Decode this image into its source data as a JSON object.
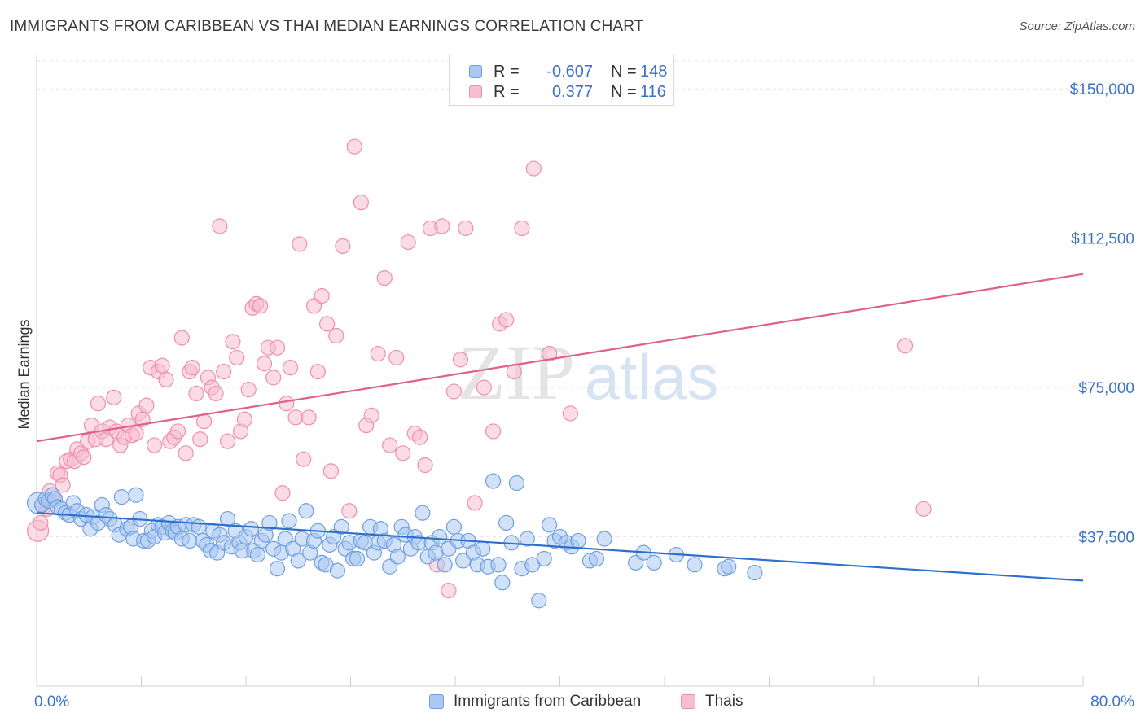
{
  "title": "IMMIGRANTS FROM CARIBBEAN VS THAI MEDIAN EARNINGS CORRELATION CHART",
  "source": "Source: ZipAtlas.com",
  "watermark": {
    "part1": "ZIP",
    "part2": "atlas"
  },
  "legend": {
    "rows": [
      {
        "r_label": "R =",
        "r_value": "-0.607",
        "n_label": "N =",
        "n_value": "148",
        "color": "#6f9fe0"
      },
      {
        "r_label": "R =",
        "r_value": "0.377",
        "n_label": "N =",
        "n_value": "116",
        "color": "#ef8fab"
      }
    ]
  },
  "colors": {
    "caribbean_fill": "#a9c8f2",
    "caribbean_stroke": "#6f9fe0",
    "caribbean_line": "#2e6fce",
    "thai_fill": "#f7bdd0",
    "thai_stroke": "#ef8fab",
    "thai_line": "#e0608a",
    "axis_label": "#3b72c7",
    "grid": "#e6e6e6"
  },
  "chart_data": {
    "type": "scatter",
    "title": "IMMIGRANTS FROM CARIBBEAN VS THAI MEDIAN EARNINGS CORRELATION CHART",
    "xlabel": "",
    "ylabel": "Median Earnings",
    "xlim": [
      0,
      80
    ],
    "ylim": [
      0,
      157000
    ],
    "x_tick_labels": [
      "0.0%",
      "80.0%"
    ],
    "y_ticks": [
      37500,
      75000,
      112500,
      150000
    ],
    "y_tick_labels": [
      "$37,500",
      "$75,000",
      "$112,500",
      "$150,000"
    ],
    "grid": true,
    "legend_placement": "top-center",
    "series": [
      {
        "name": "Immigrants from Caribbean",
        "trend": {
          "x": [
            0,
            80
          ],
          "y": [
            43500,
            26500
          ]
        },
        "points": [
          [
            0.1,
            46000
          ],
          [
            0.4,
            45500
          ],
          [
            0.7,
            47000
          ],
          [
            0.9,
            46500
          ],
          [
            1.2,
            48000
          ],
          [
            1.4,
            47000
          ],
          [
            1.6,
            45000
          ],
          [
            1.9,
            44500
          ],
          [
            2.2,
            43500
          ],
          [
            2.5,
            43000
          ],
          [
            2.8,
            46000
          ],
          [
            3.1,
            44000
          ],
          [
            3.4,
            42000
          ],
          [
            3.8,
            43000
          ],
          [
            4.1,
            39500
          ],
          [
            4.3,
            42500
          ],
          [
            4.7,
            41000
          ],
          [
            5.0,
            45500
          ],
          [
            5.3,
            43000
          ],
          [
            5.6,
            42000
          ],
          [
            6.0,
            40500
          ],
          [
            6.3,
            38000
          ],
          [
            6.5,
            47500
          ],
          [
            6.9,
            39500
          ],
          [
            7.2,
            40000
          ],
          [
            7.4,
            37000
          ],
          [
            7.6,
            48000
          ],
          [
            7.9,
            42000
          ],
          [
            8.2,
            36500
          ],
          [
            8.5,
            36500
          ],
          [
            8.8,
            39000
          ],
          [
            9.0,
            37500
          ],
          [
            9.3,
            40500
          ],
          [
            9.6,
            40000
          ],
          [
            9.8,
            38500
          ],
          [
            10.1,
            41000
          ],
          [
            10.4,
            39000
          ],
          [
            10.6,
            38500
          ],
          [
            10.8,
            40000
          ],
          [
            11.1,
            37000
          ],
          [
            11.4,
            40500
          ],
          [
            11.7,
            36500
          ],
          [
            12.0,
            40500
          ],
          [
            12.4,
            40000
          ],
          [
            12.7,
            36500
          ],
          [
            13.0,
            35500
          ],
          [
            13.3,
            34000
          ],
          [
            13.5,
            39000
          ],
          [
            13.8,
            33500
          ],
          [
            14.0,
            38000
          ],
          [
            14.3,
            36000
          ],
          [
            14.6,
            42000
          ],
          [
            14.9,
            35000
          ],
          [
            15.2,
            39000
          ],
          [
            15.5,
            36000
          ],
          [
            15.7,
            34000
          ],
          [
            16.0,
            37500
          ],
          [
            16.4,
            39500
          ],
          [
            16.6,
            34000
          ],
          [
            16.9,
            33000
          ],
          [
            17.2,
            36500
          ],
          [
            17.5,
            38000
          ],
          [
            17.8,
            41000
          ],
          [
            18.1,
            34500
          ],
          [
            18.4,
            29500
          ],
          [
            18.7,
            33500
          ],
          [
            19.0,
            37000
          ],
          [
            19.3,
            41500
          ],
          [
            19.6,
            34500
          ],
          [
            20.0,
            31500
          ],
          [
            20.3,
            37000
          ],
          [
            20.6,
            44000
          ],
          [
            20.9,
            33500
          ],
          [
            21.2,
            36500
          ],
          [
            21.5,
            39000
          ],
          [
            21.8,
            31000
          ],
          [
            22.1,
            30500
          ],
          [
            22.4,
            35500
          ],
          [
            22.7,
            37500
          ],
          [
            23.0,
            29000
          ],
          [
            23.3,
            40000
          ],
          [
            23.6,
            34500
          ],
          [
            23.9,
            36000
          ],
          [
            24.2,
            32000
          ],
          [
            24.5,
            32000
          ],
          [
            24.8,
            36500
          ],
          [
            25.1,
            36000
          ],
          [
            25.5,
            40000
          ],
          [
            25.8,
            33500
          ],
          [
            26.1,
            36000
          ],
          [
            26.3,
            39500
          ],
          [
            26.6,
            36500
          ],
          [
            27.0,
            30000
          ],
          [
            27.3,
            35500
          ],
          [
            27.6,
            32500
          ],
          [
            27.9,
            40000
          ],
          [
            28.2,
            38000
          ],
          [
            28.6,
            34500
          ],
          [
            28.9,
            37500
          ],
          [
            29.2,
            36000
          ],
          [
            29.5,
            43500
          ],
          [
            29.9,
            32500
          ],
          [
            30.2,
            36000
          ],
          [
            30.5,
            33500
          ],
          [
            30.8,
            37500
          ],
          [
            31.2,
            30500
          ],
          [
            31.5,
            34500
          ],
          [
            31.9,
            40000
          ],
          [
            32.2,
            36500
          ],
          [
            32.6,
            31500
          ],
          [
            33.0,
            36500
          ],
          [
            33.4,
            33500
          ],
          [
            33.7,
            30500
          ],
          [
            34.1,
            34500
          ],
          [
            34.5,
            30000
          ],
          [
            34.9,
            51500
          ],
          [
            35.3,
            30500
          ],
          [
            35.6,
            26000
          ],
          [
            35.9,
            41000
          ],
          [
            36.3,
            36000
          ],
          [
            36.7,
            51000
          ],
          [
            37.1,
            29500
          ],
          [
            37.5,
            37000
          ],
          [
            37.9,
            30500
          ],
          [
            38.4,
            21500
          ],
          [
            38.8,
            32000
          ],
          [
            39.2,
            40500
          ],
          [
            39.6,
            36500
          ],
          [
            40.0,
            37500
          ],
          [
            40.5,
            36000
          ],
          [
            40.9,
            35000
          ],
          [
            41.4,
            36500
          ],
          [
            42.3,
            31500
          ],
          [
            42.8,
            32000
          ],
          [
            43.4,
            37000
          ],
          [
            45.8,
            31000
          ],
          [
            46.4,
            33500
          ],
          [
            47.2,
            31000
          ],
          [
            48.9,
            33000
          ],
          [
            50.3,
            30500
          ],
          [
            52.6,
            29500
          ],
          [
            52.9,
            30000
          ],
          [
            54.9,
            28500
          ]
        ]
      },
      {
        "name": "Thais",
        "trend": {
          "x": [
            0,
            80
          ],
          "y": [
            61500,
            103500
          ]
        },
        "points": [
          [
            0.1,
            39000
          ],
          [
            0.3,
            41000
          ],
          [
            0.5,
            45000
          ],
          [
            0.8,
            44500
          ],
          [
            1.0,
            49000
          ],
          [
            1.3,
            47000
          ],
          [
            1.6,
            53500
          ],
          [
            1.8,
            53000
          ],
          [
            2.0,
            50500
          ],
          [
            2.3,
            56500
          ],
          [
            2.6,
            57000
          ],
          [
            2.9,
            56500
          ],
          [
            3.1,
            59500
          ],
          [
            3.4,
            58500
          ],
          [
            3.6,
            57500
          ],
          [
            3.9,
            61500
          ],
          [
            4.2,
            65500
          ],
          [
            4.5,
            62000
          ],
          [
            4.7,
            71000
          ],
          [
            5.0,
            64000
          ],
          [
            5.3,
            62000
          ],
          [
            5.6,
            65000
          ],
          [
            5.9,
            72500
          ],
          [
            6.1,
            64000
          ],
          [
            6.4,
            60500
          ],
          [
            6.7,
            62500
          ],
          [
            7.0,
            65500
          ],
          [
            7.3,
            63000
          ],
          [
            7.6,
            63500
          ],
          [
            7.8,
            68500
          ],
          [
            8.1,
            67000
          ],
          [
            8.4,
            70500
          ],
          [
            8.7,
            80000
          ],
          [
            9.0,
            60500
          ],
          [
            9.3,
            79000
          ],
          [
            9.6,
            80500
          ],
          [
            9.9,
            77000
          ],
          [
            10.2,
            61500
          ],
          [
            10.5,
            62500
          ],
          [
            10.8,
            64000
          ],
          [
            11.1,
            87500
          ],
          [
            11.4,
            58500
          ],
          [
            11.7,
            79000
          ],
          [
            11.9,
            80000
          ],
          [
            12.2,
            73500
          ],
          [
            12.5,
            62000
          ],
          [
            12.8,
            66500
          ],
          [
            13.1,
            77500
          ],
          [
            13.4,
            75000
          ],
          [
            13.7,
            73500
          ],
          [
            14.0,
            115500
          ],
          [
            14.3,
            79000
          ],
          [
            14.6,
            61500
          ],
          [
            15.0,
            86500
          ],
          [
            15.3,
            82500
          ],
          [
            15.6,
            64000
          ],
          [
            15.9,
            67000
          ],
          [
            16.2,
            74500
          ],
          [
            16.5,
            95000
          ],
          [
            16.8,
            96000
          ],
          [
            17.1,
            95500
          ],
          [
            17.4,
            81000
          ],
          [
            17.7,
            85000
          ],
          [
            18.1,
            77500
          ],
          [
            18.4,
            85000
          ],
          [
            18.8,
            48500
          ],
          [
            19.1,
            71000
          ],
          [
            19.4,
            80000
          ],
          [
            19.8,
            67500
          ],
          [
            20.1,
            111000
          ],
          [
            20.4,
            57000
          ],
          [
            20.8,
            67500
          ],
          [
            21.2,
            95500
          ],
          [
            21.5,
            79000
          ],
          [
            21.8,
            98000
          ],
          [
            22.2,
            91000
          ],
          [
            22.5,
            54000
          ],
          [
            22.9,
            88000
          ],
          [
            23.4,
            110500
          ],
          [
            23.9,
            44000
          ],
          [
            24.3,
            135500
          ],
          [
            24.8,
            121500
          ],
          [
            25.2,
            65500
          ],
          [
            25.6,
            68000
          ],
          [
            26.1,
            83500
          ],
          [
            26.6,
            102500
          ],
          [
            27.0,
            60500
          ],
          [
            27.5,
            82500
          ],
          [
            28.0,
            58500
          ],
          [
            28.4,
            111500
          ],
          [
            28.9,
            63500
          ],
          [
            29.3,
            62500
          ],
          [
            29.7,
            55500
          ],
          [
            30.1,
            115000
          ],
          [
            30.6,
            30500
          ],
          [
            31.0,
            115500
          ],
          [
            31.5,
            24000
          ],
          [
            31.9,
            74000
          ],
          [
            32.4,
            82000
          ],
          [
            32.8,
            115000
          ],
          [
            33.5,
            46000
          ],
          [
            34.2,
            75000
          ],
          [
            34.9,
            64000
          ],
          [
            35.4,
            91000
          ],
          [
            35.9,
            92000
          ],
          [
            36.5,
            79000
          ],
          [
            37.1,
            115000
          ],
          [
            38.0,
            130000
          ],
          [
            39.2,
            83500
          ],
          [
            40.8,
            68500
          ],
          [
            66.4,
            85500
          ],
          [
            67.8,
            44500
          ]
        ]
      }
    ]
  },
  "bottom_legend": {
    "caribbean": "Immigrants from Caribbean",
    "thai": "Thais"
  }
}
